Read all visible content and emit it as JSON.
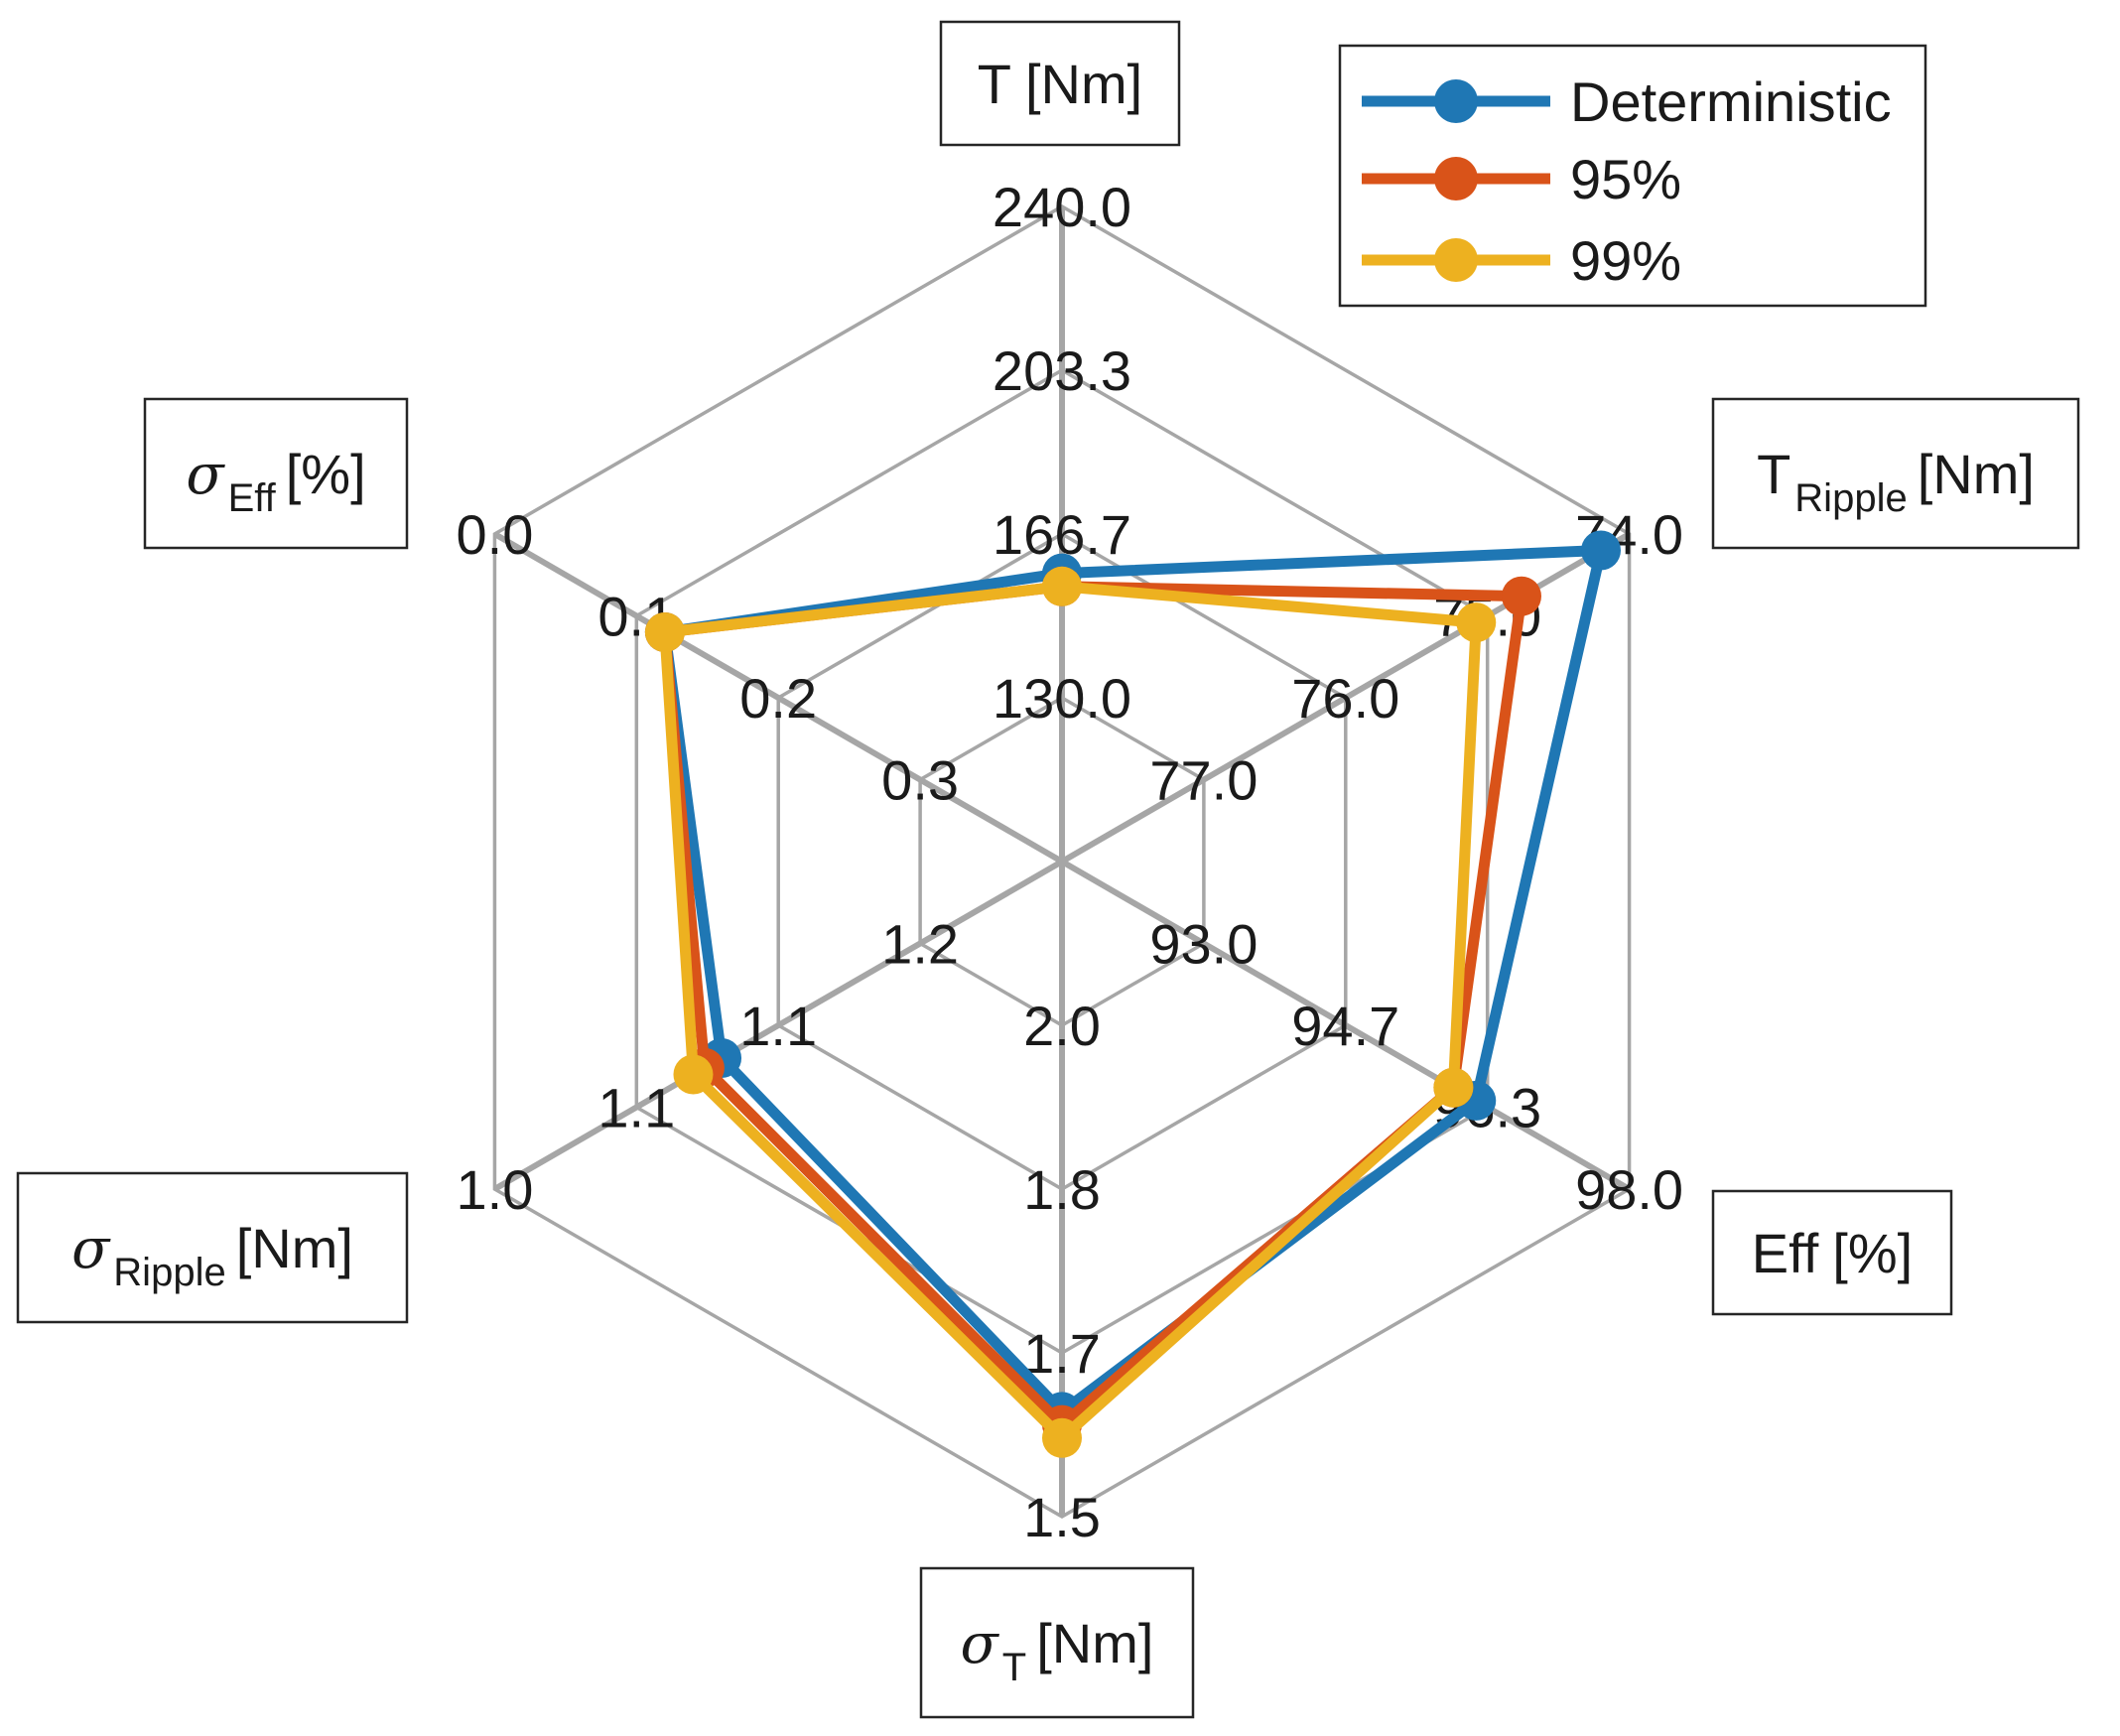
{
  "chart_data": {
    "type": "radar",
    "axes": [
      {
        "label": "T [Nm]",
        "label_main": "T",
        "label_sub": "",
        "label_unit": "[Nm]",
        "greek": false,
        "ticks": [
          "240.0",
          "203.3",
          "166.7",
          "130.0"
        ],
        "range": [
          130.0,
          240.0
        ],
        "direction": "up"
      },
      {
        "label": "T_Ripple [Nm]",
        "label_main": "T",
        "label_sub": "Ripple",
        "label_unit": "[Nm]",
        "greek": false,
        "ticks": [
          "74.0",
          "75.0",
          "76.0",
          "77.0"
        ],
        "range": [
          77.0,
          74.0
        ],
        "direction": "up-right"
      },
      {
        "label": "Eff [%]",
        "label_main": "Eff",
        "label_sub": "",
        "label_unit": "[%]",
        "greek": false,
        "ticks": [
          "98.0",
          "96.3",
          "94.7",
          "93.0"
        ],
        "range": [
          93.0,
          98.0
        ],
        "direction": "down-right"
      },
      {
        "label": "σ_T [Nm]",
        "label_main": "σ",
        "label_sub": "T",
        "label_unit": "[Nm]",
        "greek": true,
        "ticks": [
          "1.5",
          "1.7",
          "1.8",
          "2.0"
        ],
        "range": [
          2.0,
          1.5
        ],
        "direction": "down"
      },
      {
        "label": "σ_Ripple [Nm]",
        "label_main": "σ",
        "label_sub": "Ripple",
        "label_unit": "[Nm]",
        "greek": true,
        "ticks": [
          "1.0",
          "1.1",
          "1.1",
          "1.2"
        ],
        "range": [
          1.2,
          1.0
        ],
        "direction": "down-left"
      },
      {
        "label": "σ_Eff [%]",
        "label_main": "σ",
        "label_sub": "Eff",
        "label_unit": "[%]",
        "greek": true,
        "ticks": [
          "0.0",
          "0.1",
          "0.2",
          "0.3"
        ],
        "range": [
          0.3,
          0.0
        ],
        "direction": "up-left"
      }
    ],
    "series": [
      {
        "name": "Deterministic",
        "color": "#1f77b4",
        "normalized": [
          0.44,
          0.95,
          0.73,
          0.84,
          0.6,
          0.7
        ]
      },
      {
        "name": "95%",
        "color": "#d95319",
        "normalized": [
          0.42,
          0.81,
          0.69,
          0.86,
          0.63,
          0.7
        ]
      },
      {
        "name": "99%",
        "color": "#edb120",
        "normalized": [
          0.42,
          0.73,
          0.69,
          0.88,
          0.65,
          0.7
        ]
      }
    ],
    "legend": {
      "position": "top-right",
      "entries": [
        "Deterministic",
        "95%",
        "99%"
      ]
    },
    "grid_color": "#a6a6a6"
  }
}
